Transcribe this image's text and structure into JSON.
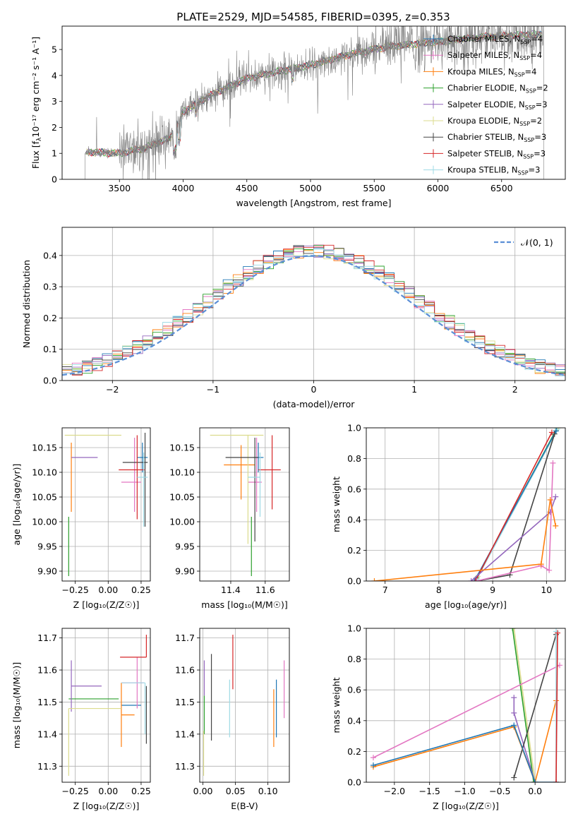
{
  "figure": {
    "title": "PLATE=2529, MJD=54585, FIBERID=0395, z=0.353"
  },
  "colors": {
    "chabrier_miles": "#1f77b4",
    "salpeter_miles": "#e377c2",
    "kroupa_miles": "#ff7f0e",
    "chabrier_elodie": "#2ca02c",
    "salpeter_elodie": "#9467bd",
    "kroupa_elodie": "#dbdb8d",
    "chabrier_stelib": "#444444",
    "salpeter_stelib": "#d62728",
    "kroupa_stelib": "#9edae5",
    "data": "#808080",
    "normal": "#5b8fd6"
  },
  "chart_data": [
    {
      "id": "spectrum",
      "type": "line",
      "title": "PLATE=2529, MJD=54585, FIBERID=0395, z=0.353",
      "xlabel": "wavelength [Angstrom, rest frame]",
      "ylabel_main": "Flux [f",
      "ylabel_sub": "λ",
      "ylabel_rest": "10⁻¹⁷ erg cm⁻² s⁻¹ A⁻¹]",
      "xlim": [
        3050,
        7000
      ],
      "ylim": [
        0,
        5.9
      ],
      "xticks": [
        3500,
        4000,
        4500,
        5000,
        5500,
        6000,
        6500
      ],
      "yticks": [
        0,
        1,
        2,
        3,
        4,
        5
      ],
      "data_color": "#808080",
      "data_range": [
        3230,
        6830
      ],
      "legend_position": "top-right",
      "continuum": [
        [
          3230,
          1.05
        ],
        [
          3500,
          1.0
        ],
        [
          3700,
          1.2
        ],
        [
          3900,
          1.6
        ],
        [
          4000,
          2.6
        ],
        [
          4200,
          3.2
        ],
        [
          4500,
          3.9
        ],
        [
          4800,
          4.2
        ],
        [
          5000,
          4.4
        ],
        [
          5300,
          4.8
        ],
        [
          5600,
          5.1
        ],
        [
          6000,
          5.3
        ],
        [
          6400,
          5.5
        ],
        [
          6830,
          5.6
        ]
      ],
      "legend": [
        {
          "label": "Chabrier MILES, N",
          "sub": "SSP",
          "post": "=4",
          "color": "#1f77b4"
        },
        {
          "label": "Salpeter MILES, N",
          "sub": "SSP",
          "post": "=4",
          "color": "#e377c2"
        },
        {
          "label": "Kroupa MILES, N",
          "sub": "SSP",
          "post": "=4",
          "color": "#ff7f0e"
        },
        {
          "label": "Chabrier ELODIE, N",
          "sub": "SSP",
          "post": "=2",
          "color": "#2ca02c"
        },
        {
          "label": "Salpeter ELODIE, N",
          "sub": "SSP",
          "post": "=3",
          "color": "#9467bd"
        },
        {
          "label": "Kroupa ELODIE, N",
          "sub": "SSP",
          "post": "=2",
          "color": "#dbdb8d"
        },
        {
          "label": "Chabrier STELIB, N",
          "sub": "SSP",
          "post": "=3",
          "color": "#444444"
        },
        {
          "label": "Salpeter STELIB, N",
          "sub": "SSP",
          "post": "=3",
          "color": "#d62728"
        },
        {
          "label": "Kroupa STELIB, N",
          "sub": "SSP",
          "post": "=3",
          "color": "#9edae5"
        }
      ]
    },
    {
      "id": "residuals",
      "type": "line",
      "xlabel": "(data-model)/error",
      "ylabel": "Normed distribution",
      "xlim": [
        -2.5,
        2.5
      ],
      "ylim": [
        0,
        0.49
      ],
      "xticks": [
        -2,
        -1,
        0,
        1,
        2
      ],
      "yticks": [
        0.0,
        0.1,
        0.2,
        0.3,
        0.4
      ],
      "grid": true,
      "legend": [
        {
          "label": "𝒩(0, 1)",
          "color": "#5b8fd6",
          "style": "dashed"
        }
      ],
      "legend_position": "top-right",
      "bin_width": 0.1
    },
    {
      "id": "age_vs_Z",
      "type": "scatter",
      "xlabel": "Z [log₁₀(Z/Z☉)]",
      "ylabel": "age  [log₁₀(age/yr)]",
      "xlim": [
        -0.35,
        0.32
      ],
      "ylim": [
        9.88,
        10.19
      ],
      "xticks": [
        -0.25,
        0.0,
        0.25
      ],
      "yticks": [
        9.9,
        9.95,
        10.0,
        10.05,
        10.1,
        10.15
      ],
      "grid": true,
      "points": [
        {
          "x": 0.26,
          "y": 10.13,
          "xerr": [
            0.04,
            0.04
          ],
          "yerr": [
            0.03,
            0.03
          ],
          "color": "#1f77b4"
        },
        {
          "x": 0.2,
          "y": 10.08,
          "xerr": [
            0.1,
            0.05
          ],
          "yerr": [
            0.06,
            0.09
          ],
          "color": "#e377c2"
        },
        {
          "x": -0.28,
          "y": 10.1,
          "xerr": [
            0.0,
            0.0
          ],
          "yerr": [
            0.08,
            0.06
          ],
          "color": "#ff7f0e"
        },
        {
          "x": -0.3,
          "y": 9.95,
          "xerr": [
            0.0,
            0.0
          ],
          "yerr": [
            0.06,
            0.06
          ],
          "color": "#2ca02c"
        },
        {
          "x": -0.18,
          "y": 10.13,
          "xerr": [
            0.1,
            0.1
          ],
          "yerr": [
            0.0,
            0.0
          ],
          "color": "#9467bd"
        },
        {
          "x": -0.28,
          "y": 10.175,
          "xerr": [
            0.05,
            0.38
          ],
          "yerr": [
            0.0,
            0.0
          ],
          "color": "#dbdb8d"
        },
        {
          "x": 0.28,
          "y": 10.12,
          "xerr": [
            0.17,
            0.02
          ],
          "yerr": [
            0.13,
            0.06
          ],
          "color": "#444444"
        },
        {
          "x": 0.22,
          "y": 10.105,
          "xerr": [
            0.14,
            0.06
          ],
          "yerr": [
            0.1,
            0.07
          ],
          "color": "#d62728"
        },
        {
          "x": 0.27,
          "y": 10.09,
          "xerr": [
            0.05,
            0.03
          ],
          "yerr": [
            0.1,
            0.05
          ],
          "color": "#9edae5"
        }
      ]
    },
    {
      "id": "age_vs_mass",
      "type": "scatter",
      "xlabel": "mass [log₁₀(M/M☉)]",
      "ylabel": "",
      "xlim": [
        11.22,
        11.74
      ],
      "ylim": [
        9.88,
        10.19
      ],
      "xticks": [
        11.4,
        11.6
      ],
      "yticks": [
        9.9,
        9.95,
        10.0,
        10.05,
        10.1,
        10.15
      ],
      "grid": true,
      "points": [
        {
          "x": 11.56,
          "y": 10.13,
          "xerr": [
            0.03,
            0.03
          ],
          "yerr": [
            0.03,
            0.03
          ],
          "color": "#1f77b4"
        },
        {
          "x": 11.55,
          "y": 10.08,
          "xerr": [
            0.05,
            0.03
          ],
          "yerr": [
            0.06,
            0.09
          ],
          "color": "#e377c2"
        },
        {
          "x": 11.46,
          "y": 10.115,
          "xerr": [
            0.1,
            0.08
          ],
          "yerr": [
            0.07,
            0.04
          ],
          "color": "#ff7f0e"
        },
        {
          "x": 11.52,
          "y": 9.95,
          "xerr": [
            0.0,
            0.0
          ],
          "yerr": [
            0.06,
            0.06
          ],
          "color": "#2ca02c"
        },
        {
          "x": 11.55,
          "y": 10.13,
          "xerr": [
            0.0,
            0.0
          ],
          "yerr": [
            0.0,
            0.0
          ],
          "color": "#9467bd"
        },
        {
          "x": 11.5,
          "y": 10.175,
          "xerr": [
            0.22,
            0.09
          ],
          "yerr": [
            0.22,
            0.0
          ],
          "color": "#dbdb8d"
        },
        {
          "x": 11.54,
          "y": 10.13,
          "xerr": [
            0.17,
            0.02
          ],
          "yerr": [
            0.17,
            0.04
          ],
          "color": "#444444"
        },
        {
          "x": 11.64,
          "y": 10.105,
          "xerr": [
            0.08,
            0.05
          ],
          "yerr": [
            0.08,
            0.07
          ],
          "color": "#d62728"
        },
        {
          "x": 11.57,
          "y": 10.09,
          "xerr": [
            0.07,
            0.0
          ],
          "yerr": [
            0.08,
            0.05
          ],
          "color": "#9edae5"
        }
      ]
    },
    {
      "id": "weight_vs_age",
      "type": "line",
      "xlabel": "age  [log₁₀(age/yr)]",
      "ylabel": "mass weight",
      "xlim": [
        6.65,
        10.35
      ],
      "ylim": [
        0,
        1.0
      ],
      "xticks": [
        7,
        8,
        9,
        10
      ],
      "yticks": [
        0.0,
        0.2,
        0.4,
        0.6,
        0.8,
        1.0
      ],
      "grid": true,
      "series": [
        {
          "color": "#2ca02c",
          "points": [
            [
              8.7,
              0.02
            ],
            [
              10.2,
              1.0
            ]
          ]
        },
        {
          "color": "#dbdb8d",
          "points": [
            [
              8.72,
              0.03
            ],
            [
              10.22,
              1.0
            ]
          ]
        },
        {
          "color": "#9edae5",
          "points": [
            [
              8.7,
              0.01
            ],
            [
              10.2,
              0.99
            ]
          ]
        },
        {
          "color": "#1f77b4",
          "points": [
            [
              8.66,
              0.0
            ],
            [
              10.18,
              0.98
            ]
          ]
        },
        {
          "color": "#d62728",
          "points": [
            [
              8.68,
              0.0
            ],
            [
              10.1,
              0.97
            ]
          ]
        },
        {
          "color": "#444444",
          "points": [
            [
              8.7,
              0.0
            ],
            [
              9.32,
              0.04
            ],
            [
              10.15,
              0.96
            ]
          ]
        },
        {
          "color": "#9467bd",
          "points": [
            [
              8.6,
              0.0
            ],
            [
              10.07,
              0.45
            ],
            [
              10.17,
              0.55
            ]
          ]
        },
        {
          "color": "#e377c2",
          "points": [
            [
              8.7,
              0.0
            ],
            [
              9.9,
              0.1
            ],
            [
              10.05,
              0.07
            ],
            [
              10.12,
              0.77
            ]
          ]
        },
        {
          "color": "#ff7f0e",
          "points": [
            [
              6.8,
              0.0
            ],
            [
              9.9,
              0.11
            ],
            [
              10.07,
              0.53
            ],
            [
              10.17,
              0.36
            ]
          ]
        }
      ]
    },
    {
      "id": "mass_vs_Z",
      "type": "scatter",
      "xlabel": "Z [log₁₀(Z/Z☉)]",
      "ylabel": "mass [log₁₀(M/M☉)]",
      "xlim": [
        -0.35,
        0.32
      ],
      "ylim": [
        11.25,
        11.73
      ],
      "xticks": [
        -0.25,
        0.0,
        0.25
      ],
      "yticks": [
        11.3,
        11.4,
        11.5,
        11.6,
        11.7
      ],
      "grid": true,
      "points": [
        {
          "x": 0.2,
          "y": 11.49,
          "xerr": [
            0.1,
            0.05
          ],
          "yerr": [
            0.0,
            0.0
          ],
          "color": "#1f77b4"
        },
        {
          "x": 0.22,
          "y": 11.56,
          "xerr": [
            0.12,
            0.05
          ],
          "yerr": [
            0.08,
            0.08
          ],
          "color": "#e377c2"
        },
        {
          "x": 0.1,
          "y": 11.46,
          "xerr": [
            0.0,
            0.1
          ],
          "yerr": [
            0.1,
            0.1
          ],
          "color": "#ff7f0e"
        },
        {
          "x": -0.3,
          "y": 11.51,
          "xerr": [
            0.0,
            0.38
          ],
          "yerr": [
            0.0,
            0.0
          ],
          "color": "#2ca02c"
        },
        {
          "x": -0.28,
          "y": 11.55,
          "xerr": [
            0.0,
            0.23
          ],
          "yerr": [
            0.08,
            0.08
          ],
          "color": "#9467bd"
        },
        {
          "x": -0.3,
          "y": 11.48,
          "xerr": [
            0.0,
            0.4
          ],
          "yerr": [
            0.21,
            0.0
          ],
          "color": "#dbdb8d"
        },
        {
          "x": 0.29,
          "y": 11.46,
          "xerr": [
            0.0,
            0.0
          ],
          "yerr": [
            0.09,
            0.09
          ],
          "color": "#444444"
        },
        {
          "x": 0.29,
          "y": 11.64,
          "xerr": [
            0.2,
            0.0
          ],
          "yerr": [
            0.0,
            0.07
          ],
          "color": "#d62728"
        },
        {
          "x": 0.28,
          "y": 11.56,
          "xerr": [
            0.18,
            0.0
          ],
          "yerr": [
            0.16,
            0.0
          ],
          "color": "#9edae5"
        }
      ]
    },
    {
      "id": "mass_vs_ebv",
      "type": "scatter",
      "xlabel": "E(B-V)",
      "ylabel": "",
      "xlim": [
        -0.005,
        0.133
      ],
      "ylim": [
        11.25,
        11.73
      ],
      "xticks": [
        0.0,
        0.05,
        0.1
      ],
      "yticks": [
        11.3,
        11.4,
        11.5,
        11.6,
        11.7
      ],
      "grid": true,
      "points": [
        {
          "x": 0.113,
          "y": 11.49,
          "xerr": [
            0.0,
            0.0
          ],
          "yerr": [
            0.1,
            0.08
          ],
          "color": "#1f77b4"
        },
        {
          "x": 0.125,
          "y": 11.55,
          "xerr": [
            0.0,
            0.0
          ],
          "yerr": [
            0.1,
            0.08
          ],
          "color": "#e377c2"
        },
        {
          "x": 0.109,
          "y": 11.46,
          "xerr": [
            0.0,
            0.0
          ],
          "yerr": [
            0.1,
            0.08
          ],
          "color": "#ff7f0e"
        },
        {
          "x": 0.002,
          "y": 11.52,
          "xerr": [
            0.0,
            0.0
          ],
          "yerr": [
            0.12,
            0.0
          ],
          "color": "#2ca02c"
        },
        {
          "x": 0.002,
          "y": 11.56,
          "xerr": [
            0.0,
            0.0
          ],
          "yerr": [
            0.04,
            0.07
          ],
          "color": "#9467bd"
        },
        {
          "x": 0.001,
          "y": 11.41,
          "xerr": [
            0.0,
            0.0
          ],
          "yerr": [
            0.14,
            0.0
          ],
          "color": "#dbdb8d"
        },
        {
          "x": 0.013,
          "y": 11.51,
          "xerr": [
            0.0,
            0.0
          ],
          "yerr": [
            0.13,
            0.14
          ],
          "color": "#444444"
        },
        {
          "x": 0.046,
          "y": 11.62,
          "xerr": [
            0.0,
            0.0
          ],
          "yerr": [
            0.08,
            0.09
          ],
          "color": "#d62728"
        },
        {
          "x": 0.041,
          "y": 11.51,
          "xerr": [
            0.0,
            0.0
          ],
          "yerr": [
            0.12,
            0.06
          ],
          "color": "#9edae5"
        }
      ]
    },
    {
      "id": "weight_vs_Z",
      "type": "line",
      "xlabel": "Z [log₁₀(Z/Z☉)]",
      "ylabel": "mass weight",
      "xlim": [
        -2.4,
        0.43
      ],
      "ylim": [
        0,
        1.0
      ],
      "xticks": [
        -2.0,
        -1.5,
        -1.0,
        -0.5,
        0.0
      ],
      "yticks": [
        0.0,
        0.2,
        0.4,
        0.6,
        0.8,
        1.0
      ],
      "grid": true,
      "series": [
        {
          "color": "#dbdb8d",
          "points": [
            [
              -0.3,
              1.0
            ],
            [
              0.0,
              0.0
            ]
          ]
        },
        {
          "color": "#2ca02c",
          "points": [
            [
              -0.32,
              1.0
            ],
            [
              -0.02,
              0.0
            ]
          ]
        },
        {
          "color": "#9467bd",
          "points": [
            [
              -0.3,
              0.55
            ],
            [
              -0.3,
              0.45
            ],
            [
              0.0,
              0.0
            ]
          ]
        },
        {
          "color": "#444444",
          "points": [
            [
              -0.3,
              0.03
            ],
            [
              0.3,
              0.96
            ]
          ]
        },
        {
          "color": "#e377c2",
          "points": [
            [
              -2.3,
              0.16
            ],
            [
              0.35,
              0.76
            ]
          ]
        },
        {
          "color": "#ff7f0e",
          "points": [
            [
              -2.3,
              0.1
            ],
            [
              -0.3,
              0.36
            ],
            [
              0.0,
              0.0
            ],
            [
              0.3,
              0.53
            ]
          ]
        },
        {
          "color": "#1f77b4",
          "points": [
            [
              -2.3,
              0.11
            ],
            [
              -0.3,
              0.37
            ],
            [
              0.0,
              0.0
            ],
            [
              0.3,
              0.0
            ]
          ]
        },
        {
          "color": "#9edae5",
          "points": [
            [
              0.3,
              0.0
            ],
            [
              0.3,
              0.98
            ]
          ]
        },
        {
          "color": "#d62728",
          "points": [
            [
              0.3,
              0.0
            ],
            [
              0.32,
              0.97
            ]
          ]
        }
      ]
    }
  ]
}
